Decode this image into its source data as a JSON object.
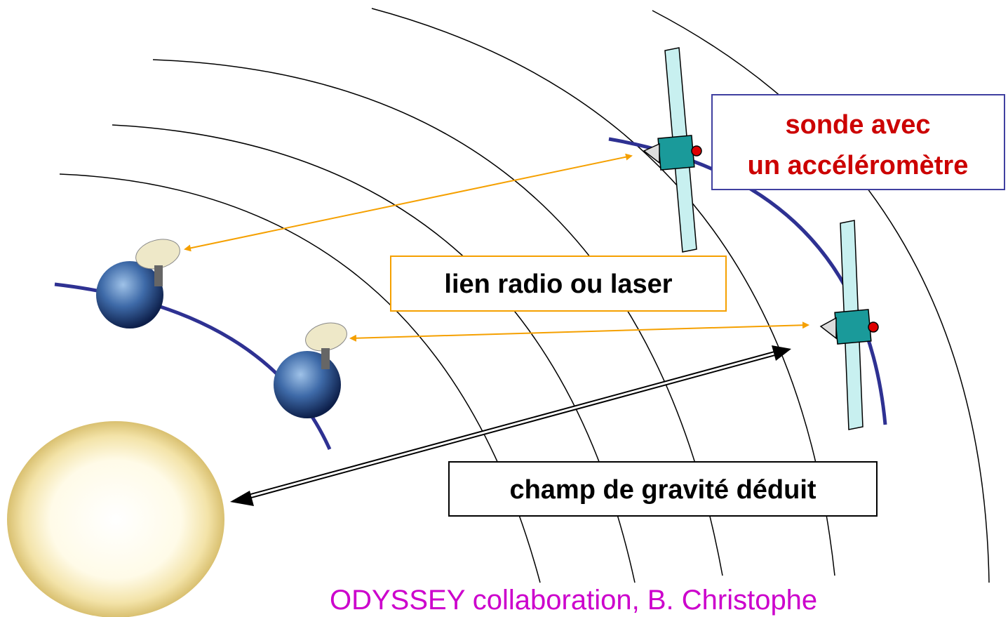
{
  "labels": {
    "probe": [
      "sonde avec",
      "un accéléromètre"
    ],
    "link": "lien radio ou laser",
    "gravity": "champ de gravité déduit",
    "credit": "ODYSSEY collaboration, B. Christophe"
  }
}
